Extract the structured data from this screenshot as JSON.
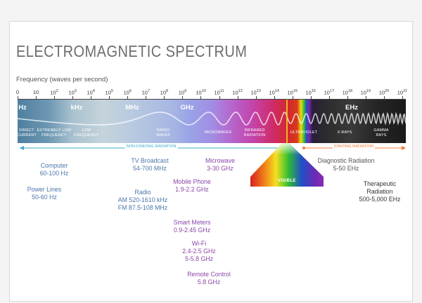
{
  "title": "ELECTROMAGNETIC SPECTRUM",
  "frequency_label": "Frequency (waves per second)",
  "ticks": [
    {
      "base": "0",
      "exp": ""
    },
    {
      "base": "10",
      "exp": ""
    },
    {
      "base": "10",
      "exp": "2"
    },
    {
      "base": "10",
      "exp": "3"
    },
    {
      "base": "10",
      "exp": "4"
    },
    {
      "base": "10",
      "exp": "5"
    },
    {
      "base": "10",
      "exp": "6"
    },
    {
      "base": "10",
      "exp": "7"
    },
    {
      "base": "10",
      "exp": "8"
    },
    {
      "base": "10",
      "exp": "9"
    },
    {
      "base": "10",
      "exp": "10"
    },
    {
      "base": "10",
      "exp": "11"
    },
    {
      "base": "10",
      "exp": "12"
    },
    {
      "base": "10",
      "exp": "13"
    },
    {
      "base": "10",
      "exp": "14"
    },
    {
      "base": "10",
      "exp": "15"
    },
    {
      "base": "10",
      "exp": "16"
    },
    {
      "base": "10",
      "exp": "17"
    },
    {
      "base": "10",
      "exp": "18"
    },
    {
      "base": "10",
      "exp": "19"
    },
    {
      "base": "10",
      "exp": "20"
    },
    {
      "base": "10",
      "exp": "21"
    }
  ],
  "units": {
    "hz": "Hz",
    "khz": "kHz",
    "mhz": "MHz",
    "ghz": "GHz",
    "ehz": "EHz"
  },
  "bands": {
    "direct_current": [
      "DIRECT",
      "CURRENT"
    ],
    "extremely_low": [
      "EXTREMELY LOW",
      "FREQUENCY"
    ],
    "low": [
      "LOW",
      "FREQUENCY"
    ],
    "radio": [
      "RADIO",
      "WAVES"
    ],
    "microwaves": [
      "MICROWAVES"
    ],
    "infrared": [
      "INFRARED",
      "RADIATION"
    ],
    "ultraviolet": [
      "ULTRAVIOLET"
    ],
    "xrays": [
      "X-RAYS"
    ],
    "gamma": [
      "GAMMA",
      "RAYS"
    ]
  },
  "visible_label": "VISIBLE",
  "non_ionizing_label": "NON-IONIZING RADIATION",
  "ionizing_label": "IONIZING RADIATION",
  "colors": {
    "non_ionizing": "#3aa9c9",
    "ionizing": "#f07a3a",
    "blue_text": "#4a76a8",
    "purple_text": "#8a45a8"
  },
  "items": {
    "computer": [
      "Computer",
      "60-100 Hz"
    ],
    "power_lines": [
      "Power Lines",
      "50-60 Hz"
    ],
    "tv": [
      "TV Broadcast",
      "54-700 MHz"
    ],
    "radio": [
      "Radio",
      "AM 520-1610 kHz",
      "FM 87.5-108 MHz"
    ],
    "microwave": [
      "Microwave",
      "3-30 GHz"
    ],
    "mobile": [
      "Mobile Phone",
      "1.9-2.2 GHz"
    ],
    "smart_meters": [
      "Smart Meters",
      "0.9-2.45 GHz"
    ],
    "wifi": [
      "Wi-Fi",
      "2.4-2.5 GHz",
      "5-5.8 GHz"
    ],
    "remote": [
      "Remote Control",
      "5.8 GHz"
    ],
    "diagnostic": [
      "Diagnostic Radiation",
      "5-50 EHz"
    ],
    "therapeutic": [
      "Therapeutic",
      "Radiation",
      "500-5,000 EHz"
    ]
  }
}
